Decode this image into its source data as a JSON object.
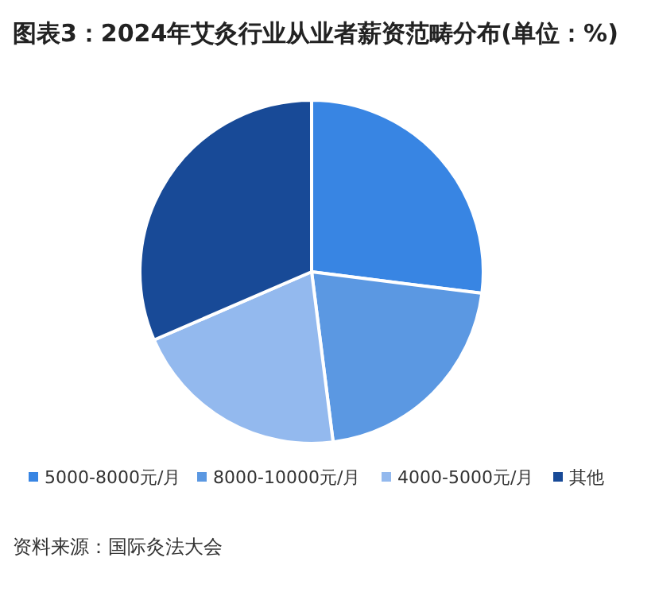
{
  "chart_data": {
    "type": "pie",
    "title": "图表3：2024年艾灸行业从业者薪资范畴分布(单位：%)",
    "categories": [
      "5000-8000元/月",
      "8000-10000元/月",
      "4000-5000元/月",
      "其他"
    ],
    "values": [
      27,
      21,
      20.5,
      31.5
    ],
    "colors": [
      "#3885e3",
      "#5b98e2",
      "#93b9ee",
      "#184a97"
    ],
    "legend": "bottom",
    "annotations": [
      "资料来源：国际灸法大会"
    ]
  }
}
